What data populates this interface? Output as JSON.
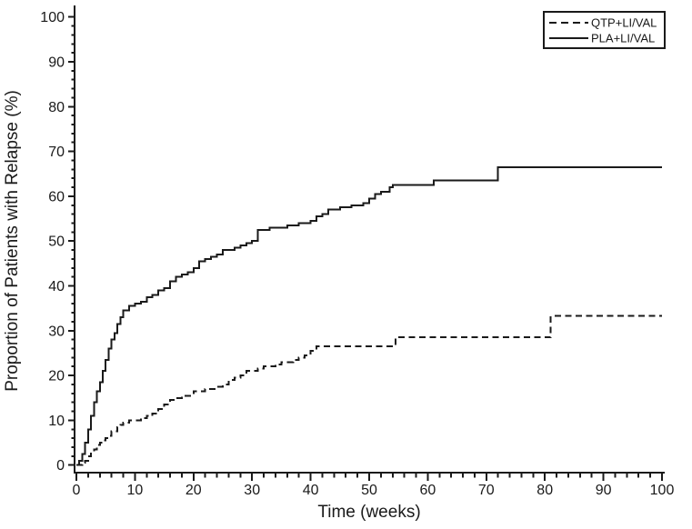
{
  "figure": {
    "background": "#ffffff",
    "ink_color": "#1a1a1a"
  },
  "legend": {
    "items": [
      {
        "label": "QTP+LI/VAL",
        "line_style": "dashed"
      },
      {
        "label": "PLA+LI/VAL",
        "line_style": "solid"
      }
    ],
    "position": "top-right"
  },
  "chart_data": {
    "type": "line",
    "subtype": "kaplan-meier-step",
    "title": "",
    "xlabel": "Time (weeks)",
    "ylabel": "Proportion of Patients with Relapse (%)",
    "xlim": [
      0,
      100
    ],
    "ylim": [
      0,
      100
    ],
    "x_major_ticks": [
      0,
      10,
      20,
      30,
      40,
      50,
      60,
      70,
      80,
      90,
      100
    ],
    "y_major_ticks": [
      0,
      10,
      20,
      30,
      40,
      50,
      60,
      70,
      80,
      90,
      100
    ],
    "minor_tick_step": 2,
    "grid": false,
    "legend_position": "top-right",
    "series": [
      {
        "name": "QTP+LI/VAL",
        "key": "qtp-li-val",
        "style": "dashed",
        "color": "#1a1a1a",
        "step_points": [
          [
            0,
            0
          ],
          [
            1,
            0.5
          ],
          [
            1.5,
            1
          ],
          [
            2,
            2
          ],
          [
            2.5,
            3
          ],
          [
            3,
            3.5
          ],
          [
            3.5,
            4.5
          ],
          [
            4,
            5
          ],
          [
            4.5,
            5.5
          ],
          [
            5,
            6
          ],
          [
            5.5,
            6.5
          ],
          [
            6,
            7.5
          ],
          [
            7,
            8.5
          ],
          [
            7.5,
            9
          ],
          [
            8,
            9.5
          ],
          [
            9,
            10
          ],
          [
            11,
            10.5
          ],
          [
            12,
            11
          ],
          [
            13,
            11.5
          ],
          [
            14,
            12.5
          ],
          [
            15,
            13.5
          ],
          [
            16,
            14.5
          ],
          [
            17,
            15
          ],
          [
            18,
            15.5
          ],
          [
            20,
            16.5
          ],
          [
            22,
            17
          ],
          [
            24,
            17.5
          ],
          [
            25,
            18
          ],
          [
            26,
            19
          ],
          [
            27,
            19.5
          ],
          [
            28,
            20
          ],
          [
            29,
            21
          ],
          [
            31,
            21.5
          ],
          [
            32,
            22
          ],
          [
            34,
            22.5
          ],
          [
            35,
            23
          ],
          [
            37,
            23.5
          ],
          [
            38,
            24
          ],
          [
            39,
            24.5
          ],
          [
            40,
            25.5
          ],
          [
            41,
            26.5
          ],
          [
            54.5,
            28.5
          ],
          [
            81,
            33.3
          ],
          [
            100,
            33.3
          ]
        ]
      },
      {
        "name": "PLA+LI/VAL",
        "key": "pla-li-val",
        "style": "solid",
        "color": "#1a1a1a",
        "step_points": [
          [
            0,
            0
          ],
          [
            0.5,
            1
          ],
          [
            1,
            2.5
          ],
          [
            1.5,
            5
          ],
          [
            2,
            8
          ],
          [
            2.5,
            11
          ],
          [
            3,
            14
          ],
          [
            3.5,
            16.5
          ],
          [
            4,
            18.5
          ],
          [
            4.5,
            21
          ],
          [
            5,
            23.5
          ],
          [
            5.5,
            26
          ],
          [
            6,
            28
          ],
          [
            6.5,
            29.5
          ],
          [
            7,
            31.5
          ],
          [
            7.5,
            33
          ],
          [
            8,
            34.5
          ],
          [
            9,
            35.5
          ],
          [
            10,
            36
          ],
          [
            11,
            36.5
          ],
          [
            12,
            37.5
          ],
          [
            13,
            38
          ],
          [
            14,
            39
          ],
          [
            15,
            39.5
          ],
          [
            16,
            41
          ],
          [
            17,
            42
          ],
          [
            18,
            42.5
          ],
          [
            19,
            43
          ],
          [
            20,
            44
          ],
          [
            21,
            45.5
          ],
          [
            22,
            46
          ],
          [
            23,
            46.5
          ],
          [
            24,
            47
          ],
          [
            25,
            48
          ],
          [
            27,
            48.5
          ],
          [
            28,
            49
          ],
          [
            29,
            49.5
          ],
          [
            30,
            50
          ],
          [
            31,
            52.5
          ],
          [
            33,
            53
          ],
          [
            36,
            53.5
          ],
          [
            38,
            54
          ],
          [
            40,
            54.5
          ],
          [
            41,
            55.5
          ],
          [
            42,
            56
          ],
          [
            43,
            57
          ],
          [
            45,
            57.5
          ],
          [
            47,
            58
          ],
          [
            49,
            58.5
          ],
          [
            50,
            59.5
          ],
          [
            51,
            60.5
          ],
          [
            52,
            61
          ],
          [
            53.5,
            62
          ],
          [
            54,
            62.5
          ],
          [
            61,
            63.5
          ],
          [
            72,
            66.5
          ],
          [
            100,
            66.5
          ]
        ]
      }
    ]
  }
}
